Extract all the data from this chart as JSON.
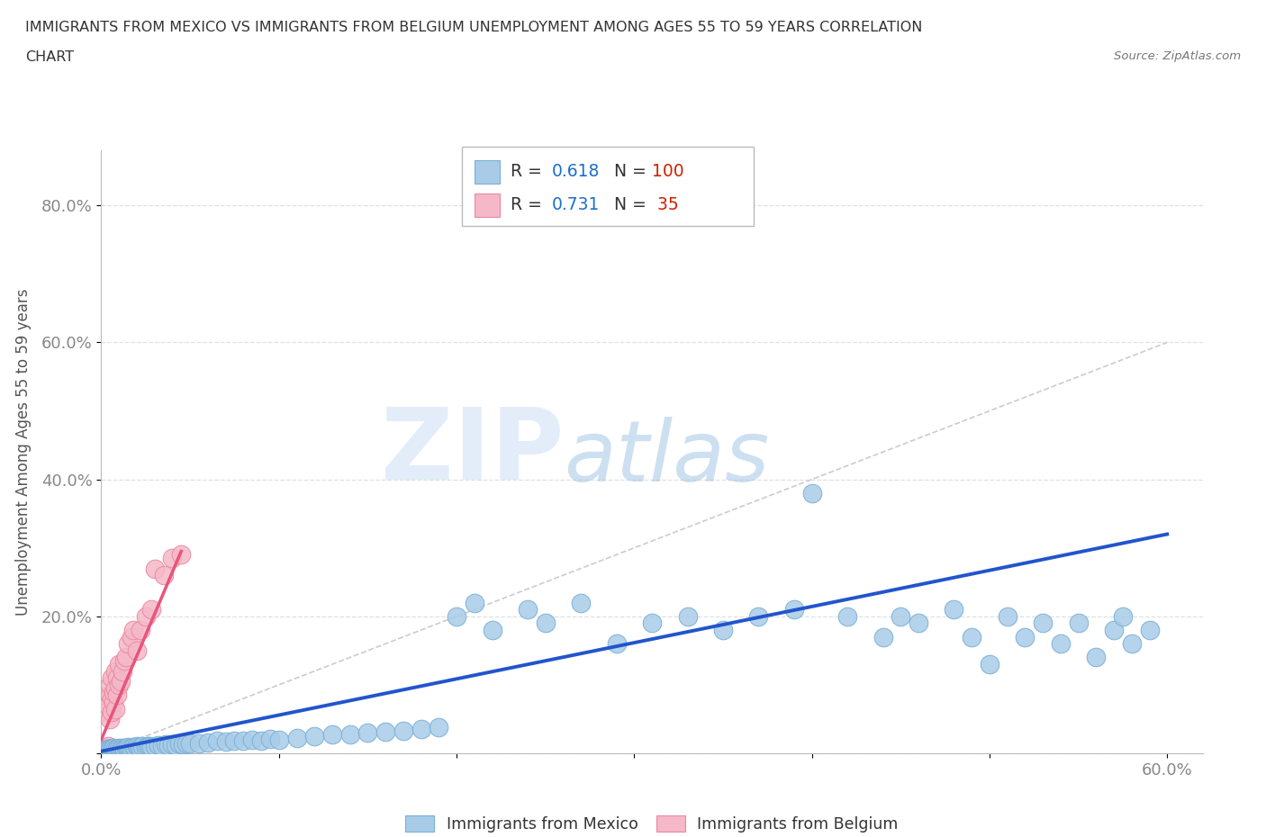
{
  "title_line1": "IMMIGRANTS FROM MEXICO VS IMMIGRANTS FROM BELGIUM UNEMPLOYMENT AMONG AGES 55 TO 59 YEARS CORRELATION",
  "title_line2": "CHART",
  "source_text": "Source: ZipAtlas.com",
  "ylabel": "Unemployment Among Ages 55 to 59 years",
  "xlim": [
    0.0,
    0.62
  ],
  "ylim": [
    0.0,
    0.88
  ],
  "xtick_positions": [
    0.0,
    0.1,
    0.2,
    0.3,
    0.4,
    0.5,
    0.6
  ],
  "xticklabels": [
    "0.0%",
    "",
    "",
    "",
    "",
    "",
    "60.0%"
  ],
  "ytick_positions": [
    0.0,
    0.2,
    0.4,
    0.6,
    0.8
  ],
  "yticklabels": [
    "",
    "20.0%",
    "40.0%",
    "60.0%",
    "80.0%"
  ],
  "mexico_color": "#a8cce8",
  "mexico_edge_color": "#7bafd4",
  "belgium_color": "#f5b8c8",
  "belgium_edge_color": "#e88aa0",
  "mexico_trend_color": "#2255cc",
  "belgium_trend_color": "#e8547a",
  "ref_line_color": "#cccccc",
  "R_mexico": 0.618,
  "N_mexico": 100,
  "R_belgium": 0.731,
  "N_belgium": 35,
  "watermark_zip": "ZIP",
  "watermark_atlas": "atlas",
  "watermark_color_zip": "#c8ddf0",
  "watermark_color_atlas": "#90c0e8",
  "background_color": "#ffffff",
  "grid_color": "#e0e0e0",
  "title_color": "#333333",
  "axis_label_color": "#555555",
  "tick_color": "#888888",
  "legend_R_color": "#1a6fcc",
  "legend_N_color": "#cc2200",
  "mexico_x": [
    0.002,
    0.003,
    0.004,
    0.004,
    0.005,
    0.005,
    0.005,
    0.006,
    0.006,
    0.007,
    0.007,
    0.007,
    0.008,
    0.008,
    0.009,
    0.009,
    0.01,
    0.01,
    0.01,
    0.011,
    0.011,
    0.012,
    0.012,
    0.013,
    0.013,
    0.014,
    0.015,
    0.015,
    0.016,
    0.017,
    0.018,
    0.019,
    0.02,
    0.021,
    0.022,
    0.023,
    0.025,
    0.026,
    0.027,
    0.028,
    0.03,
    0.032,
    0.034,
    0.036,
    0.038,
    0.04,
    0.042,
    0.044,
    0.046,
    0.048,
    0.05,
    0.055,
    0.06,
    0.065,
    0.07,
    0.075,
    0.08,
    0.085,
    0.09,
    0.095,
    0.1,
    0.11,
    0.12,
    0.13,
    0.14,
    0.15,
    0.16,
    0.17,
    0.18,
    0.19,
    0.2,
    0.21,
    0.22,
    0.24,
    0.25,
    0.27,
    0.29,
    0.31,
    0.33,
    0.35,
    0.37,
    0.39,
    0.4,
    0.42,
    0.44,
    0.45,
    0.46,
    0.48,
    0.49,
    0.5,
    0.51,
    0.52,
    0.53,
    0.54,
    0.55,
    0.56,
    0.57,
    0.575,
    0.58,
    0.59
  ],
  "mexico_y": [
    0.005,
    0.004,
    0.005,
    0.006,
    0.005,
    0.006,
    0.007,
    0.005,
    0.006,
    0.005,
    0.007,
    0.008,
    0.005,
    0.006,
    0.005,
    0.007,
    0.006,
    0.007,
    0.008,
    0.006,
    0.007,
    0.005,
    0.008,
    0.007,
    0.006,
    0.008,
    0.007,
    0.009,
    0.008,
    0.007,
    0.009,
    0.008,
    0.01,
    0.009,
    0.008,
    0.01,
    0.009,
    0.011,
    0.01,
    0.009,
    0.01,
    0.012,
    0.011,
    0.013,
    0.012,
    0.013,
    0.012,
    0.014,
    0.013,
    0.015,
    0.014,
    0.015,
    0.016,
    0.018,
    0.017,
    0.019,
    0.018,
    0.02,
    0.019,
    0.021,
    0.02,
    0.022,
    0.025,
    0.027,
    0.028,
    0.03,
    0.032,
    0.033,
    0.035,
    0.038,
    0.2,
    0.22,
    0.18,
    0.21,
    0.19,
    0.22,
    0.16,
    0.19,
    0.2,
    0.18,
    0.2,
    0.21,
    0.38,
    0.2,
    0.17,
    0.2,
    0.19,
    0.21,
    0.17,
    0.13,
    0.2,
    0.17,
    0.19,
    0.16,
    0.19,
    0.14,
    0.18,
    0.2,
    0.16,
    0.18
  ],
  "belgium_x": [
    0.002,
    0.003,
    0.003,
    0.004,
    0.004,
    0.005,
    0.005,
    0.005,
    0.006,
    0.006,
    0.006,
    0.007,
    0.007,
    0.008,
    0.008,
    0.008,
    0.009,
    0.009,
    0.01,
    0.01,
    0.011,
    0.012,
    0.013,
    0.014,
    0.015,
    0.017,
    0.018,
    0.02,
    0.022,
    0.025,
    0.028,
    0.03,
    0.035,
    0.04,
    0.045
  ],
  "belgium_y": [
    0.005,
    0.06,
    0.008,
    0.07,
    0.01,
    0.05,
    0.085,
    0.1,
    0.06,
    0.08,
    0.11,
    0.075,
    0.09,
    0.065,
    0.095,
    0.12,
    0.085,
    0.11,
    0.1,
    0.13,
    0.105,
    0.12,
    0.135,
    0.14,
    0.16,
    0.17,
    0.18,
    0.15,
    0.18,
    0.2,
    0.21,
    0.27,
    0.26,
    0.285,
    0.29
  ],
  "mexico_trend_x": [
    0.0,
    0.6
  ],
  "mexico_trend_y": [
    0.003,
    0.32
  ],
  "belgium_trend_x": [
    0.0,
    0.045
  ],
  "belgium_trend_y": [
    0.02,
    0.295
  ],
  "ref_line_x": [
    0.0,
    0.6
  ],
  "ref_line_y": [
    0.0,
    0.6
  ]
}
